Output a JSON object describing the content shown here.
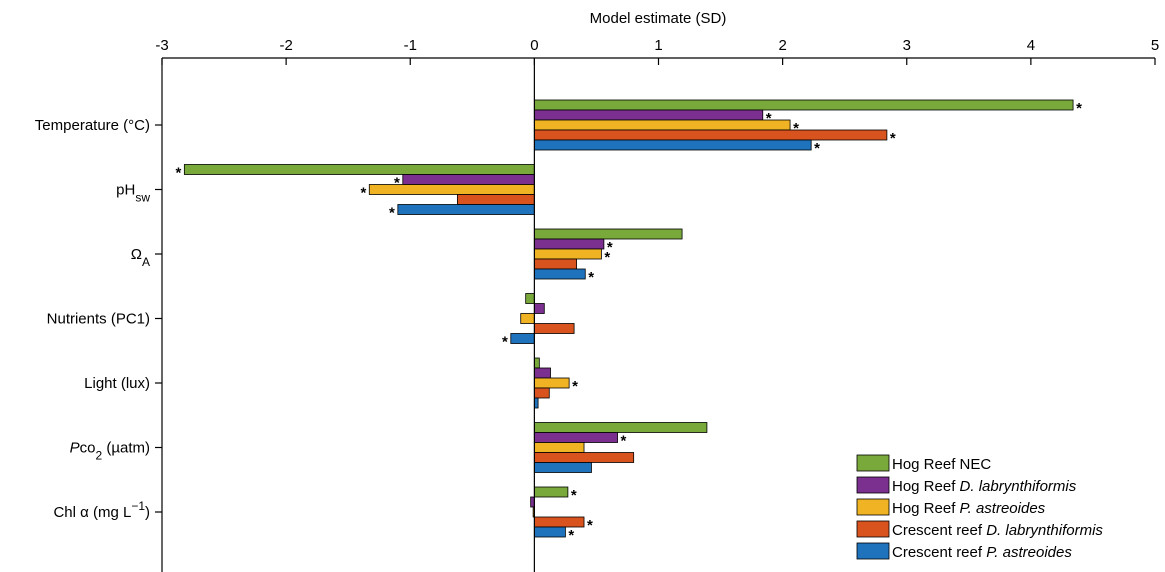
{
  "chart_data": {
    "type": "barh",
    "title": "Model estimate (SD)",
    "categories": [
      [
        {
          "text": "Temperature (°C)"
        }
      ],
      [
        {
          "text": "pH"
        },
        {
          "text": "sw",
          "style": "sub"
        }
      ],
      [
        {
          "text": "Ω"
        },
        {
          "text": "A",
          "style": "sub"
        }
      ],
      [
        {
          "text": "Nutrients (PC1)"
        }
      ],
      [
        {
          "text": "Light (lux)"
        }
      ],
      [
        {
          "text": "P",
          "style": "italic"
        },
        {
          "text": "co"
        },
        {
          "text": "2",
          "style": "sub"
        },
        {
          "text": " (µatm)"
        }
      ],
      [
        {
          "text": "Chl α (mg L"
        },
        {
          "text": "−1",
          "style": "sup"
        },
        {
          "text": ")"
        }
      ]
    ],
    "xlim": [
      -3,
      5
    ],
    "xticks": [
      -3,
      -2,
      -1,
      0,
      1,
      2,
      3,
      4,
      5
    ],
    "annotation_symbol": "*",
    "legend": "lower right",
    "series": [
      {
        "name": "Hog Reef NEC",
        "color": "#78a93a",
        "values": [
          4.34,
          -2.82,
          1.19,
          -0.07,
          0.04,
          1.39,
          0.27
        ],
        "significant": [
          true,
          true,
          false,
          false,
          false,
          false,
          true
        ]
      },
      {
        "name": "Hog Reef D. labrynthiformis",
        "italic": "D. labrynthiformis",
        "color": "#7b2f8e",
        "values": [
          1.84,
          -1.06,
          0.56,
          0.08,
          0.13,
          0.67,
          -0.03
        ],
        "significant": [
          true,
          true,
          true,
          false,
          false,
          true,
          false
        ]
      },
      {
        "name": "Hog Reef P. astreoides",
        "italic": "P. astreoides",
        "color": "#f0b323",
        "values": [
          2.06,
          -1.33,
          0.54,
          -0.11,
          0.28,
          0.4,
          -0.01
        ],
        "significant": [
          true,
          true,
          true,
          false,
          true,
          false,
          false
        ]
      },
      {
        "name": "Crescent reef D. labrynthiformis",
        "italic": "D. labrynthiformis",
        "color": "#d9531e",
        "values": [
          2.84,
          -0.62,
          0.34,
          0.32,
          0.12,
          0.8,
          0.4
        ],
        "significant": [
          true,
          false,
          false,
          false,
          false,
          false,
          true
        ]
      },
      {
        "name": "Crescent reef P. astreoides",
        "italic": "P. astreoides",
        "color": "#1f72bc",
        "values": [
          2.23,
          -1.1,
          0.41,
          -0.19,
          0.03,
          0.46,
          0.25
        ],
        "significant": [
          true,
          true,
          true,
          true,
          false,
          false,
          true
        ]
      }
    ]
  }
}
